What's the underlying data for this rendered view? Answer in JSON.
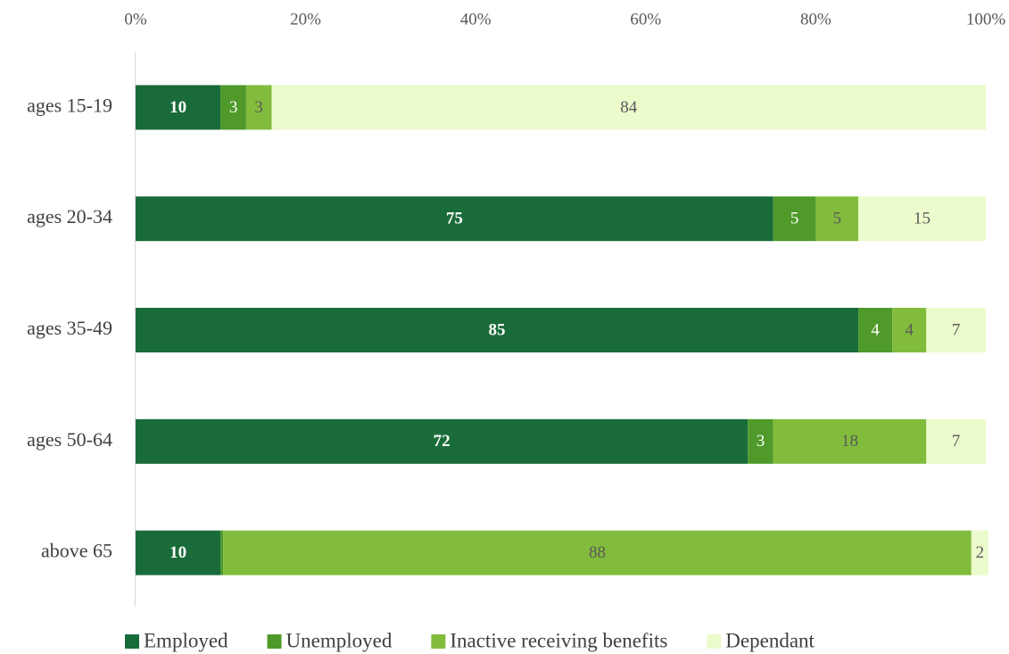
{
  "chart_data": {
    "type": "stacked-bar-horizontal",
    "categories": [
      "ages 15-19",
      "ages 20-34",
      "ages 35-49",
      "ages 50-64",
      "above 65"
    ],
    "series": [
      {
        "name": "Employed",
        "color": "#1a6b3a",
        "values": [
          10,
          75,
          85,
          72,
          10
        ]
      },
      {
        "name": "Unemployed",
        "color": "#4f9a2a",
        "values": [
          3,
          5,
          4,
          3,
          0.3
        ]
      },
      {
        "name": "Inactive receiving benefits",
        "color": "#82bc3c",
        "values": [
          3,
          5,
          4,
          18,
          88
        ]
      },
      {
        "name": "Dependant",
        "color": "#ebfbcb",
        "values": [
          84,
          15,
          7,
          7,
          2
        ]
      }
    ],
    "xlim": [
      0,
      100
    ],
    "xticks": [
      {
        "value": 0,
        "label": "0%"
      },
      {
        "value": 20,
        "label": "20%"
      },
      {
        "value": 40,
        "label": "40%"
      },
      {
        "value": 60,
        "label": "60%"
      },
      {
        "value": 80,
        "label": "80%"
      },
      {
        "value": 100,
        "label": "100%"
      }
    ],
    "legend": "bottom"
  }
}
